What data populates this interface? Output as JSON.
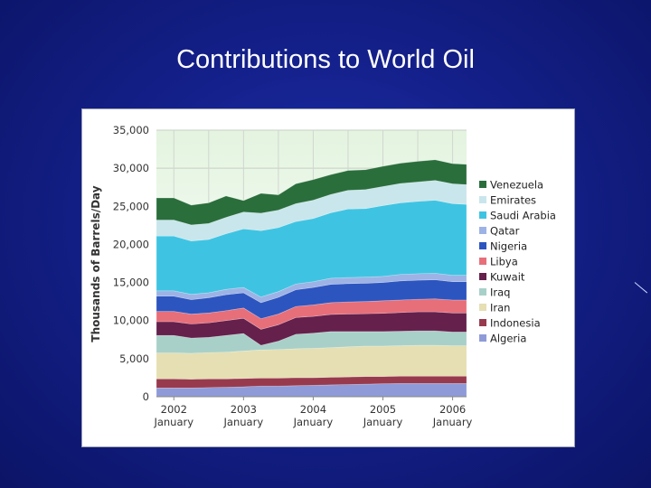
{
  "slide": {
    "title": "Contributions to World Oil"
  },
  "chart_data": {
    "type": "area",
    "stacked": true,
    "title": "",
    "xlabel": "",
    "ylabel": "Thousands of Barrels/Day",
    "ylim": [
      0,
      35000
    ],
    "yticks": [
      0,
      5000,
      10000,
      15000,
      20000,
      25000,
      30000,
      35000
    ],
    "ytick_labels": [
      "0",
      "5,000",
      "10,000",
      "15,000",
      "20,000",
      "25,000",
      "30,000",
      "35,000"
    ],
    "xticks": [
      {
        "x": 2002.0,
        "year": "2002",
        "month": "January"
      },
      {
        "x": 2003.0,
        "year": "2003",
        "month": "January"
      },
      {
        "x": 2004.0,
        "year": "2004",
        "month": "January"
      },
      {
        "x": 2005.0,
        "year": "2005",
        "month": "January"
      },
      {
        "x": 2006.0,
        "year": "2006",
        "month": "January"
      }
    ],
    "xlim": [
      2001.75,
      2006.2
    ],
    "grid": true,
    "legend_position": "right",
    "x": [
      2001.75,
      2002.0,
      2002.25,
      2002.5,
      2002.75,
      2003.0,
      2003.25,
      2003.5,
      2003.75,
      2004.0,
      2004.25,
      2004.5,
      2004.75,
      2005.0,
      2005.25,
      2005.5,
      2005.75,
      2006.0,
      2006.2
    ],
    "series": [
      {
        "name": "Algeria",
        "color": "#8f9bd8",
        "values": [
          1150,
          1150,
          1150,
          1200,
          1250,
          1300,
          1400,
          1400,
          1450,
          1500,
          1550,
          1600,
          1650,
          1700,
          1750,
          1750,
          1750,
          1750,
          1750
        ]
      },
      {
        "name": "Indonesia",
        "color": "#983a4e",
        "values": [
          1200,
          1200,
          1150,
          1150,
          1100,
          1100,
          1050,
          1050,
          1050,
          1000,
          1000,
          1000,
          1000,
          950,
          950,
          950,
          950,
          950,
          950
        ]
      },
      {
        "name": "Iran",
        "color": "#e5dfb3",
        "values": [
          3400,
          3400,
          3400,
          3450,
          3500,
          3600,
          3700,
          3750,
          3800,
          3850,
          3900,
          3950,
          4000,
          4000,
          4000,
          4050,
          4050,
          4000,
          4000
        ]
      },
      {
        "name": "Iraq",
        "color": "#a8d0c8",
        "values": [
          2300,
          2300,
          2000,
          2000,
          2200,
          2300,
          600,
          1100,
          1900,
          2000,
          2100,
          2000,
          1900,
          1900,
          1900,
          1900,
          1900,
          1800,
          1800
        ]
      },
      {
        "name": "Kuwait",
        "color": "#65204c",
        "values": [
          1800,
          1800,
          1850,
          1900,
          1950,
          2000,
          2100,
          2150,
          2200,
          2200,
          2250,
          2300,
          2350,
          2400,
          2450,
          2500,
          2500,
          2500,
          2500
        ]
      },
      {
        "name": "Libya",
        "color": "#e76f7a",
        "values": [
          1350,
          1350,
          1300,
          1300,
          1300,
          1350,
          1400,
          1400,
          1450,
          1500,
          1550,
          1600,
          1600,
          1650,
          1650,
          1650,
          1700,
          1700,
          1700
        ]
      },
      {
        "name": "Nigeria",
        "color": "#2d55c0",
        "values": [
          2000,
          2000,
          1900,
          2000,
          2100,
          2000,
          2100,
          2200,
          2200,
          2300,
          2400,
          2400,
          2400,
          2400,
          2500,
          2500,
          2500,
          2400,
          2400
        ]
      },
      {
        "name": "Qatar",
        "color": "#9db3e6",
        "values": [
          700,
          700,
          700,
          650,
          700,
          700,
          750,
          750,
          750,
          750,
          800,
          800,
          800,
          800,
          850,
          850,
          850,
          850,
          850
        ]
      },
      {
        "name": "Saudi Arabia",
        "color": "#3ec4e2",
        "values": [
          7200,
          7200,
          7000,
          7000,
          7300,
          7700,
          8700,
          8400,
          8200,
          8300,
          8600,
          9000,
          9000,
          9300,
          9400,
          9500,
          9600,
          9400,
          9300
        ]
      },
      {
        "name": "Emirates",
        "color": "#c9e6ec",
        "values": [
          2100,
          2100,
          2100,
          2100,
          2150,
          2200,
          2300,
          2300,
          2350,
          2400,
          2400,
          2450,
          2500,
          2500,
          2550,
          2550,
          2600,
          2600,
          2600
        ]
      },
      {
        "name": "Venezuela",
        "color": "#2a6e3c",
        "values": [
          2900,
          2900,
          2600,
          2700,
          2800,
          1500,
          2600,
          2000,
          2600,
          2700,
          2600,
          2600,
          2600,
          2650,
          2650,
          2700,
          2700,
          2650,
          2650
        ]
      }
    ]
  }
}
